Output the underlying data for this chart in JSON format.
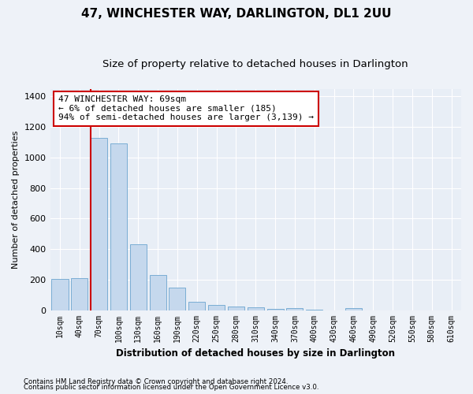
{
  "title": "47, WINCHESTER WAY, DARLINGTON, DL1 2UU",
  "subtitle": "Size of property relative to detached houses in Darlington",
  "xlabel": "Distribution of detached houses by size in Darlington",
  "ylabel": "Number of detached properties",
  "categories": [
    "10sqm",
    "40sqm",
    "70sqm",
    "100sqm",
    "130sqm",
    "160sqm",
    "190sqm",
    "220sqm",
    "250sqm",
    "280sqm",
    "310sqm",
    "340sqm",
    "370sqm",
    "400sqm",
    "430sqm",
    "460sqm",
    "490sqm",
    "520sqm",
    "550sqm",
    "580sqm",
    "610sqm"
  ],
  "values": [
    205,
    210,
    1130,
    1095,
    430,
    230,
    145,
    55,
    35,
    25,
    20,
    10,
    12,
    5,
    0,
    12,
    0,
    0,
    0,
    0,
    0
  ],
  "bar_color": "#c5d8ed",
  "bar_edge_color": "#7aadd4",
  "vline_color": "#cc0000",
  "annotation_text": "47 WINCHESTER WAY: 69sqm\n← 6% of detached houses are smaller (185)\n94% of semi-detached houses are larger (3,139) →",
  "annotation_box_color": "#ffffff",
  "annotation_box_edge_color": "#cc0000",
  "ylim": [
    0,
    1450
  ],
  "yticks": [
    0,
    200,
    400,
    600,
    800,
    1000,
    1200,
    1400
  ],
  "footer_line1": "Contains HM Land Registry data © Crown copyright and database right 2024.",
  "footer_line2": "Contains public sector information licensed under the Open Government Licence v3.0.",
  "background_color": "#eef2f8",
  "plot_bg_color": "#e8eef6",
  "grid_color": "#ffffff",
  "title_fontsize": 11,
  "subtitle_fontsize": 9.5
}
